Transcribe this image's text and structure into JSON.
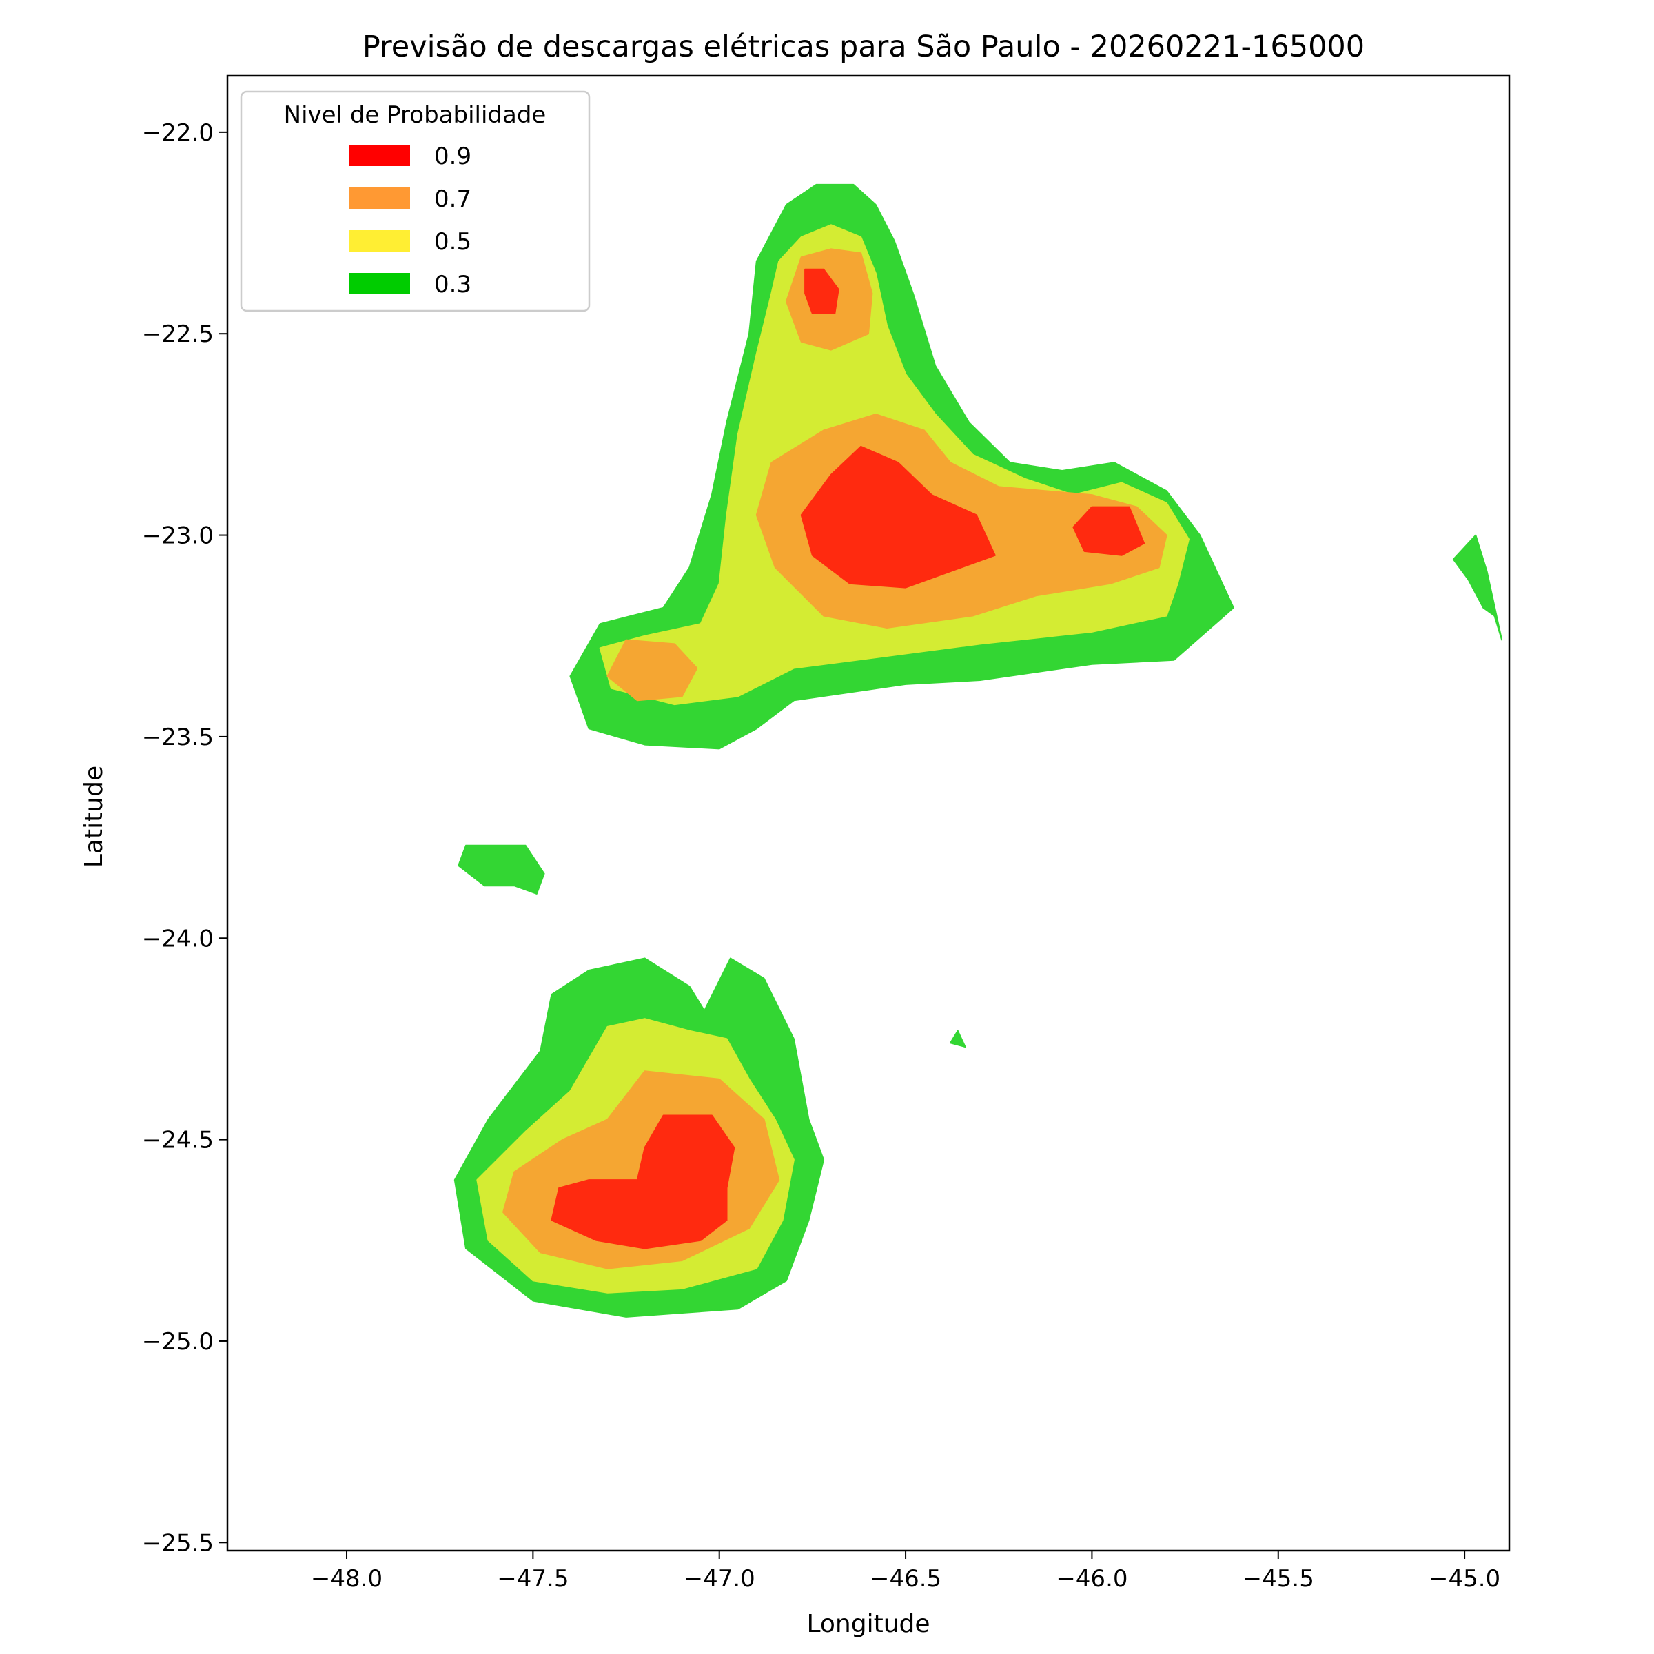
{
  "chart_data": {
    "type": "filled-contour",
    "title": "Previsão de descargas elétricas para São Paulo - 20260221-165000",
    "xlabel": "Longitude",
    "ylabel": "Latitude",
    "xlim": [
      -48.32,
      -44.88
    ],
    "ylim": [
      -25.52,
      -21.86
    ],
    "x_ticks": [
      {
        "value": -48.0,
        "label": "−48.0"
      },
      {
        "value": -47.5,
        "label": "−47.5"
      },
      {
        "value": -47.0,
        "label": "−47.0"
      },
      {
        "value": -46.5,
        "label": "−46.5"
      },
      {
        "value": -46.0,
        "label": "−46.0"
      },
      {
        "value": -45.5,
        "label": "−45.5"
      },
      {
        "value": -45.0,
        "label": "−45.0"
      }
    ],
    "y_ticks": [
      {
        "value": -22.0,
        "label": "−22.0"
      },
      {
        "value": -22.5,
        "label": "−22.5"
      },
      {
        "value": -23.0,
        "label": "−23.0"
      },
      {
        "value": -23.5,
        "label": "−23.5"
      },
      {
        "value": -24.0,
        "label": "−24.0"
      },
      {
        "value": -24.5,
        "label": "−24.5"
      },
      {
        "value": -25.0,
        "label": "−25.0"
      },
      {
        "value": -25.5,
        "label": "−25.5"
      }
    ],
    "legend": {
      "title": "Nivel de Probabilidade",
      "position": "upper-left",
      "entries": [
        {
          "label": "0.9",
          "color": "#ff0000"
        },
        {
          "label": "0.7",
          "color": "#ff9933"
        },
        {
          "label": "0.5",
          "color": "#ffee33"
        },
        {
          "label": "0.3",
          "color": "#00cc00"
        }
      ]
    },
    "fill_colors": {
      "0.3": "#33d633",
      "0.5": "#d4ec33",
      "0.7": "#f5a632",
      "0.9": "#ff2a0f"
    },
    "regions": [
      {
        "level": "0.3",
        "lonlat": [
          [
            -46.82,
            -22.18
          ],
          [
            -46.74,
            -22.13
          ],
          [
            -46.64,
            -22.13
          ],
          [
            -46.58,
            -22.18
          ],
          [
            -46.53,
            -22.27
          ],
          [
            -46.48,
            -22.4
          ],
          [
            -46.42,
            -22.58
          ],
          [
            -46.33,
            -22.72
          ],
          [
            -46.22,
            -22.82
          ],
          [
            -46.08,
            -22.84
          ],
          [
            -45.94,
            -22.82
          ],
          [
            -45.8,
            -22.89
          ],
          [
            -45.71,
            -23.0
          ],
          [
            -45.62,
            -23.18
          ],
          [
            -45.78,
            -23.31
          ],
          [
            -46.0,
            -23.32
          ],
          [
            -46.3,
            -23.36
          ],
          [
            -46.5,
            -23.37
          ],
          [
            -46.8,
            -23.41
          ],
          [
            -46.9,
            -23.48
          ],
          [
            -47.0,
            -23.53
          ],
          [
            -47.2,
            -23.52
          ],
          [
            -47.35,
            -23.48
          ],
          [
            -47.4,
            -23.35
          ],
          [
            -47.32,
            -23.22
          ],
          [
            -47.15,
            -23.18
          ],
          [
            -47.08,
            -23.08
          ],
          [
            -47.02,
            -22.9
          ],
          [
            -46.98,
            -22.72
          ],
          [
            -46.92,
            -22.5
          ],
          [
            -46.9,
            -22.32
          ]
        ]
      },
      {
        "level": "0.3",
        "lonlat": [
          [
            -47.35,
            -24.08
          ],
          [
            -47.2,
            -24.05
          ],
          [
            -47.08,
            -24.12
          ],
          [
            -47.04,
            -24.18
          ],
          [
            -46.97,
            -24.05
          ],
          [
            -46.88,
            -24.1
          ],
          [
            -46.8,
            -24.25
          ],
          [
            -46.76,
            -24.45
          ],
          [
            -46.72,
            -24.55
          ],
          [
            -46.76,
            -24.7
          ],
          [
            -46.82,
            -24.85
          ],
          [
            -46.95,
            -24.92
          ],
          [
            -47.25,
            -24.94
          ],
          [
            -47.5,
            -24.9
          ],
          [
            -47.68,
            -24.77
          ],
          [
            -47.71,
            -24.6
          ],
          [
            -47.62,
            -24.45
          ],
          [
            -47.48,
            -24.28
          ],
          [
            -47.45,
            -24.14
          ]
        ]
      },
      {
        "level": "0.3",
        "lonlat": [
          [
            -47.68,
            -23.77
          ],
          [
            -47.52,
            -23.77
          ],
          [
            -47.47,
            -23.84
          ],
          [
            -47.49,
            -23.89
          ],
          [
            -47.55,
            -23.87
          ],
          [
            -47.63,
            -23.87
          ],
          [
            -47.7,
            -23.82
          ]
        ]
      },
      {
        "level": "0.3",
        "lonlat": [
          [
            -44.97,
            -23.0
          ],
          [
            -44.94,
            -23.09
          ],
          [
            -44.9,
            -23.26
          ],
          [
            -44.92,
            -23.2
          ],
          [
            -44.95,
            -23.18
          ],
          [
            -44.99,
            -23.11
          ],
          [
            -45.03,
            -23.06
          ],
          [
            -45.0,
            -23.03
          ]
        ]
      },
      {
        "level": "0.3",
        "lonlat": [
          [
            -46.36,
            -24.23
          ],
          [
            -46.34,
            -24.27
          ],
          [
            -46.38,
            -24.26
          ]
        ]
      },
      {
        "level": "0.5",
        "lonlat": [
          [
            -46.78,
            -22.26
          ],
          [
            -46.7,
            -22.23
          ],
          [
            -46.62,
            -22.26
          ],
          [
            -46.58,
            -22.35
          ],
          [
            -46.55,
            -22.48
          ],
          [
            -46.5,
            -22.6
          ],
          [
            -46.42,
            -22.7
          ],
          [
            -46.32,
            -22.8
          ],
          [
            -46.18,
            -22.86
          ],
          [
            -46.05,
            -22.9
          ],
          [
            -45.92,
            -22.87
          ],
          [
            -45.8,
            -22.92
          ],
          [
            -45.74,
            -23.01
          ],
          [
            -45.77,
            -23.12
          ],
          [
            -45.8,
            -23.2
          ],
          [
            -46.0,
            -23.24
          ],
          [
            -46.3,
            -23.27
          ],
          [
            -46.55,
            -23.3
          ],
          [
            -46.8,
            -23.33
          ],
          [
            -46.95,
            -23.4
          ],
          [
            -47.12,
            -23.42
          ],
          [
            -47.29,
            -23.38
          ],
          [
            -47.32,
            -23.28
          ],
          [
            -47.2,
            -23.25
          ],
          [
            -47.05,
            -23.22
          ],
          [
            -47.0,
            -23.12
          ],
          [
            -46.98,
            -22.95
          ],
          [
            -46.95,
            -22.75
          ],
          [
            -46.9,
            -22.55
          ],
          [
            -46.86,
            -22.4
          ],
          [
            -46.84,
            -22.32
          ]
        ]
      },
      {
        "level": "0.5",
        "lonlat": [
          [
            -47.3,
            -24.22
          ],
          [
            -47.2,
            -24.2
          ],
          [
            -47.08,
            -24.23
          ],
          [
            -46.98,
            -24.25
          ],
          [
            -46.92,
            -24.35
          ],
          [
            -46.85,
            -24.45
          ],
          [
            -46.8,
            -24.55
          ],
          [
            -46.83,
            -24.7
          ],
          [
            -46.9,
            -24.82
          ],
          [
            -47.1,
            -24.87
          ],
          [
            -47.3,
            -24.88
          ],
          [
            -47.5,
            -24.85
          ],
          [
            -47.62,
            -24.75
          ],
          [
            -47.65,
            -24.6
          ],
          [
            -47.52,
            -24.48
          ],
          [
            -47.4,
            -24.38
          ]
        ]
      },
      {
        "level": "0.7",
        "lonlat": [
          [
            -46.78,
            -22.31
          ],
          [
            -46.7,
            -22.29
          ],
          [
            -46.62,
            -22.3
          ],
          [
            -46.59,
            -22.4
          ],
          [
            -46.6,
            -22.5
          ],
          [
            -46.7,
            -22.54
          ],
          [
            -46.78,
            -22.52
          ],
          [
            -46.82,
            -22.42
          ]
        ]
      },
      {
        "level": "0.7",
        "lonlat": [
          [
            -46.72,
            -22.74
          ],
          [
            -46.58,
            -22.7
          ],
          [
            -46.45,
            -22.74
          ],
          [
            -46.38,
            -22.82
          ],
          [
            -46.25,
            -22.88
          ],
          [
            -46.0,
            -22.9
          ],
          [
            -45.88,
            -22.93
          ],
          [
            -45.8,
            -23.0
          ],
          [
            -45.82,
            -23.08
          ],
          [
            -45.95,
            -23.12
          ],
          [
            -46.15,
            -23.15
          ],
          [
            -46.32,
            -23.2
          ],
          [
            -46.55,
            -23.23
          ],
          [
            -46.72,
            -23.2
          ],
          [
            -46.85,
            -23.08
          ],
          [
            -46.9,
            -22.95
          ],
          [
            -46.86,
            -22.82
          ]
        ]
      },
      {
        "level": "0.7",
        "lonlat": [
          [
            -47.25,
            -23.26
          ],
          [
            -47.12,
            -23.27
          ],
          [
            -47.06,
            -23.33
          ],
          [
            -47.1,
            -23.4
          ],
          [
            -47.22,
            -23.41
          ],
          [
            -47.3,
            -23.35
          ]
        ]
      },
      {
        "level": "0.7",
        "lonlat": [
          [
            -47.2,
            -24.33
          ],
          [
            -47.0,
            -24.35
          ],
          [
            -46.88,
            -24.45
          ],
          [
            -46.84,
            -24.6
          ],
          [
            -46.92,
            -24.72
          ],
          [
            -47.1,
            -24.8
          ],
          [
            -47.3,
            -24.82
          ],
          [
            -47.48,
            -24.78
          ],
          [
            -47.58,
            -24.68
          ],
          [
            -47.55,
            -24.58
          ],
          [
            -47.42,
            -24.5
          ],
          [
            -47.3,
            -24.45
          ]
        ]
      },
      {
        "level": "0.9",
        "lonlat": [
          [
            -46.77,
            -22.34
          ],
          [
            -46.72,
            -22.34
          ],
          [
            -46.68,
            -22.39
          ],
          [
            -46.69,
            -22.45
          ],
          [
            -46.75,
            -22.45
          ],
          [
            -46.77,
            -22.4
          ]
        ]
      },
      {
        "level": "0.9",
        "lonlat": [
          [
            -46.62,
            -22.78
          ],
          [
            -46.52,
            -22.82
          ],
          [
            -46.43,
            -22.9
          ],
          [
            -46.31,
            -22.95
          ],
          [
            -46.26,
            -23.05
          ],
          [
            -46.35,
            -23.08
          ],
          [
            -46.5,
            -23.13
          ],
          [
            -46.65,
            -23.12
          ],
          [
            -46.75,
            -23.05
          ],
          [
            -46.78,
            -22.95
          ],
          [
            -46.7,
            -22.85
          ]
        ]
      },
      {
        "level": "0.9",
        "lonlat": [
          [
            -46.0,
            -22.93
          ],
          [
            -45.9,
            -22.93
          ],
          [
            -45.86,
            -23.02
          ],
          [
            -45.92,
            -23.05
          ],
          [
            -46.02,
            -23.04
          ],
          [
            -46.05,
            -22.98
          ]
        ]
      },
      {
        "level": "0.9",
        "lonlat": [
          [
            -47.15,
            -24.44
          ],
          [
            -47.02,
            -24.44
          ],
          [
            -46.96,
            -24.52
          ],
          [
            -46.98,
            -24.62
          ],
          [
            -46.98,
            -24.7
          ],
          [
            -47.05,
            -24.75
          ],
          [
            -47.2,
            -24.77
          ],
          [
            -47.33,
            -24.75
          ],
          [
            -47.45,
            -24.7
          ],
          [
            -47.43,
            -24.62
          ],
          [
            -47.35,
            -24.6
          ],
          [
            -47.22,
            -24.6
          ],
          [
            -47.2,
            -24.52
          ]
        ]
      }
    ]
  }
}
